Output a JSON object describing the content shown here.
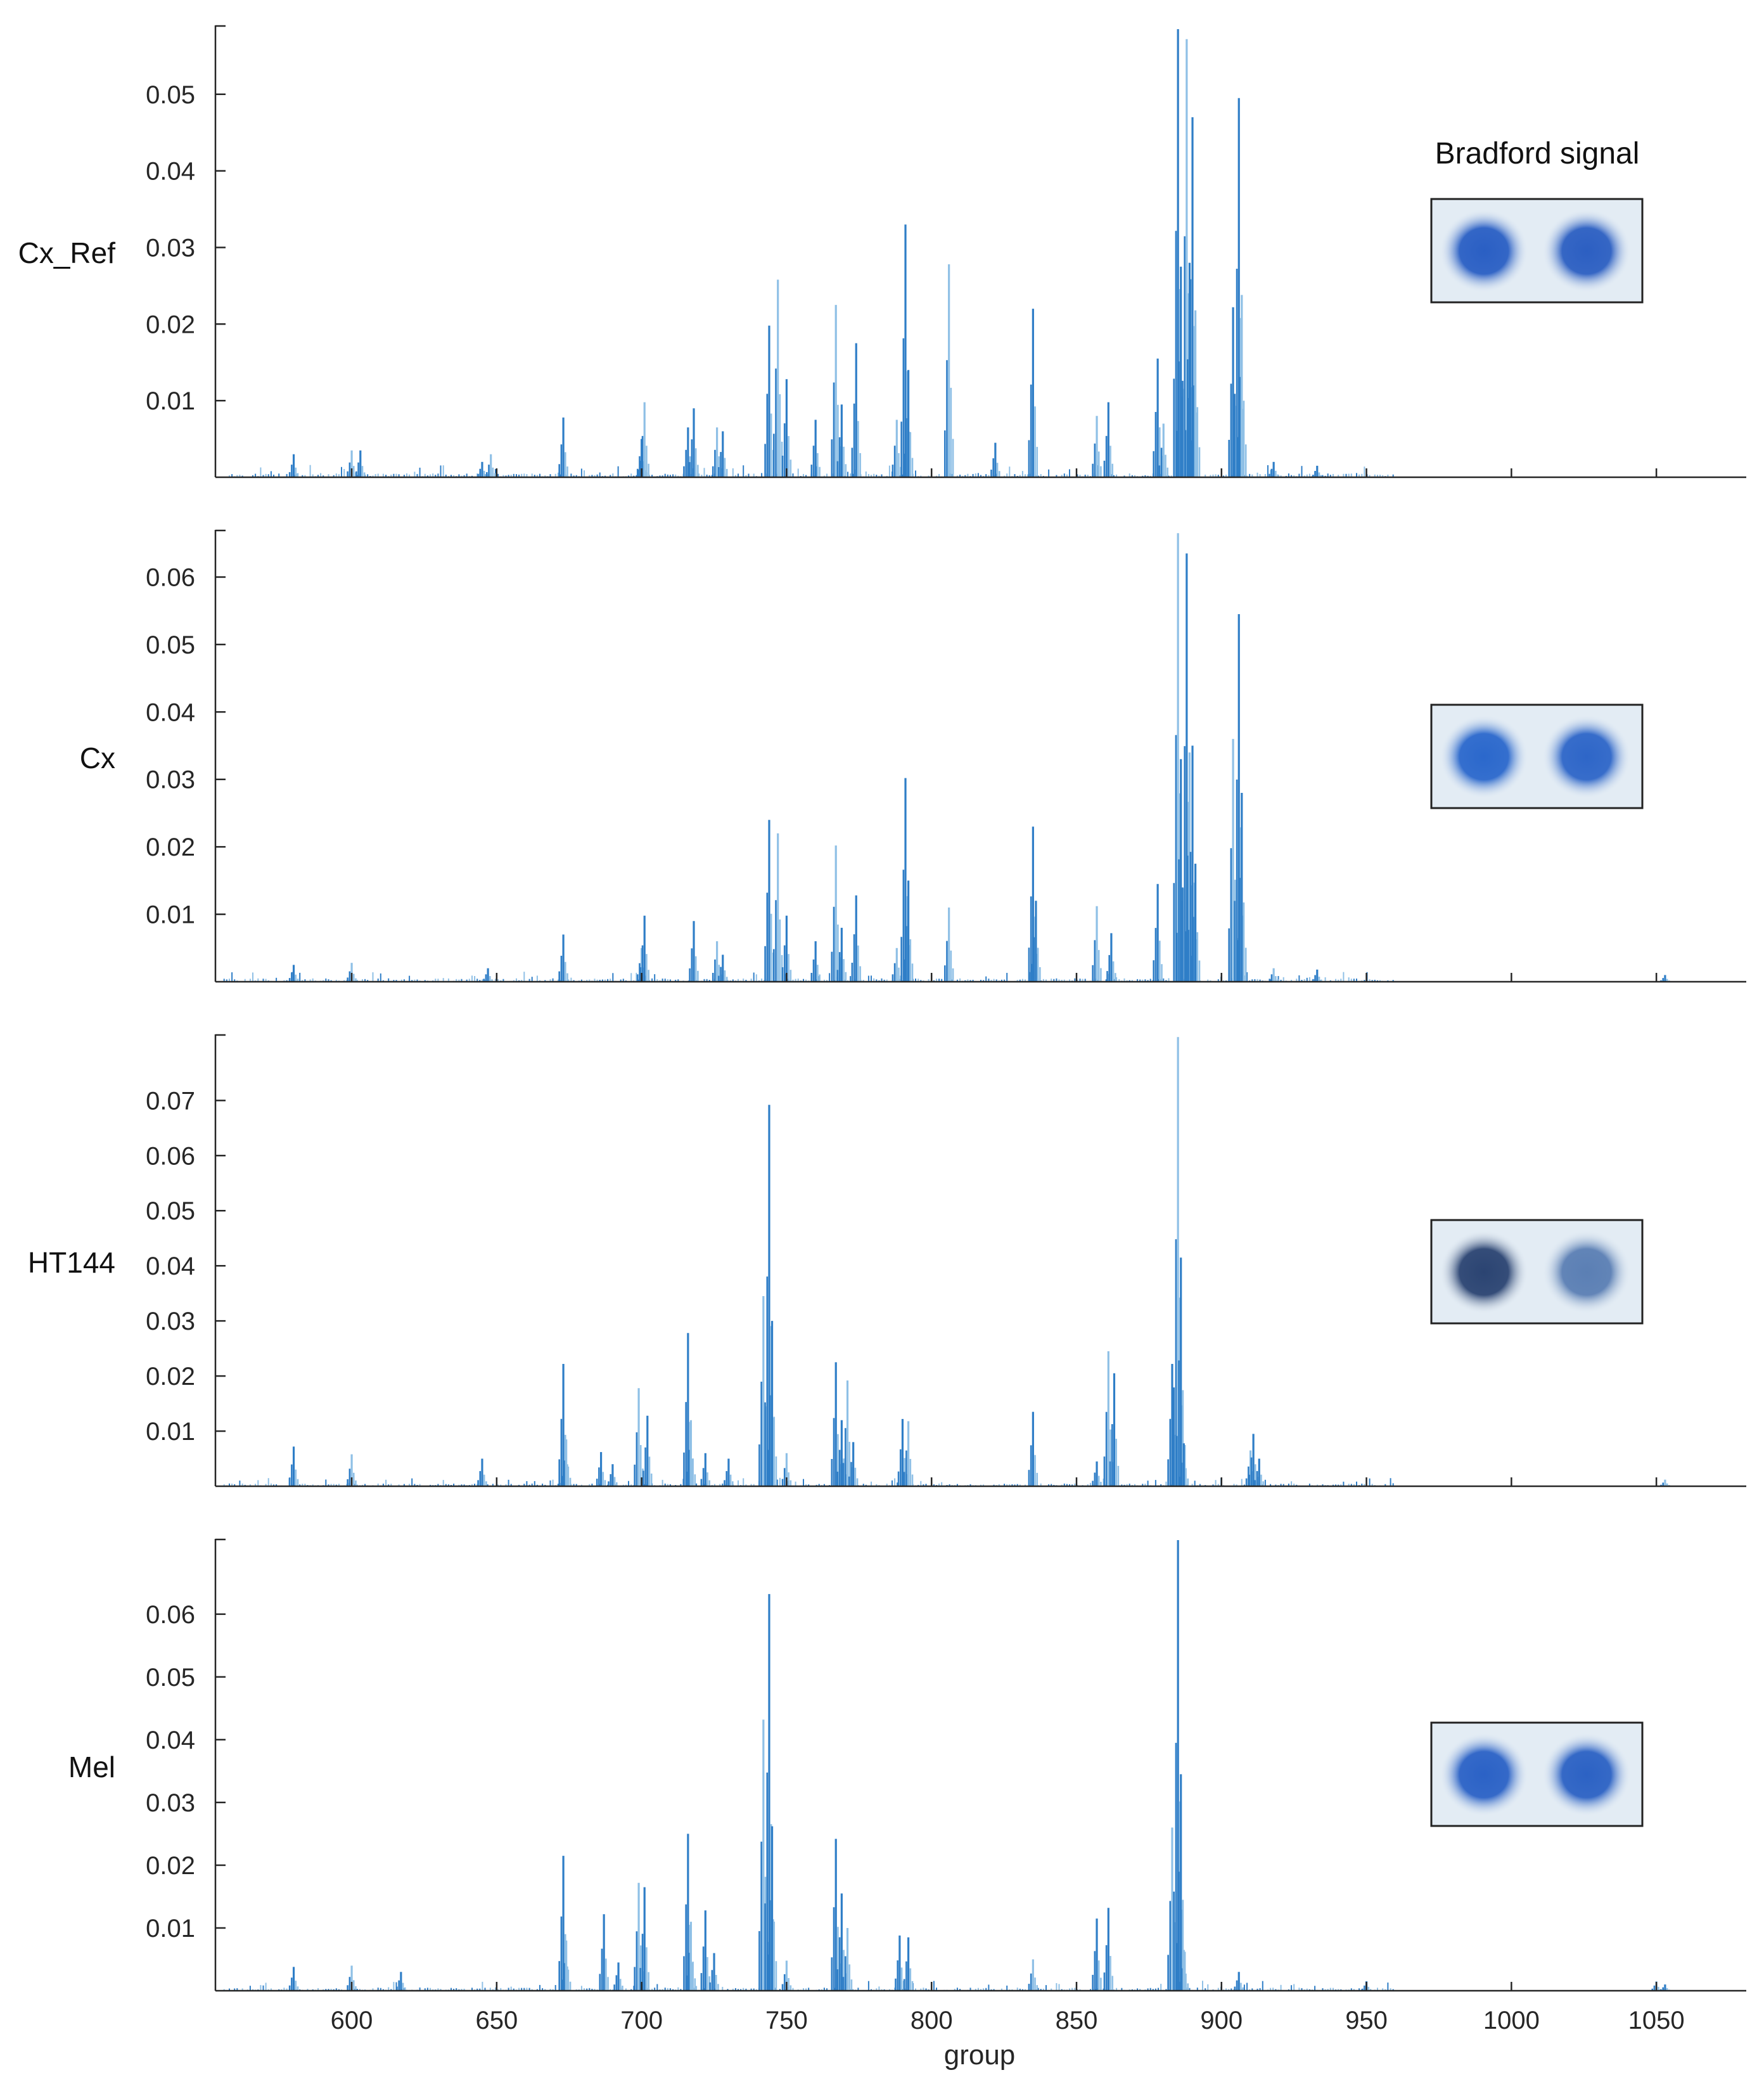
{
  "figure": {
    "inset_title": "Bradford signal",
    "xlabel": "group"
  },
  "chart_data": [
    {
      "type": "bar",
      "sample": "Cx_Ref",
      "title": "",
      "xlabel": "",
      "ylabel": "",
      "xlim": [
        553,
        1081
      ],
      "ylim": [
        0,
        0.059
      ],
      "yticks": [
        "0.01",
        "0.02",
        "0.03",
        "0.04",
        "0.05"
      ],
      "xticks": [
        600,
        650,
        700,
        750,
        800,
        850,
        900,
        950,
        1000,
        1050
      ],
      "show_xtick_labels": false,
      "inset": {
        "left_spot": "#2a5fc4",
        "right_spot": "#2c5fc2"
      },
      "peaks": [
        {
          "x": 580,
          "y": 0.003
        },
        {
          "x": 600,
          "y": 0.0035
        },
        {
          "x": 603,
          "y": 0.0035
        },
        {
          "x": 645,
          "y": 0.002
        },
        {
          "x": 648,
          "y": 0.003
        },
        {
          "x": 673,
          "y": 0.0078
        },
        {
          "x": 700,
          "y": 0.005
        },
        {
          "x": 701,
          "y": 0.0098
        },
        {
          "x": 716,
          "y": 0.0065
        },
        {
          "x": 718,
          "y": 0.009
        },
        {
          "x": 726,
          "y": 0.0065
        },
        {
          "x": 728,
          "y": 0.006
        },
        {
          "x": 744,
          "y": 0.0198
        },
        {
          "x": 747,
          "y": 0.0258
        },
        {
          "x": 750,
          "y": 0.0128
        },
        {
          "x": 760,
          "y": 0.0075
        },
        {
          "x": 767,
          "y": 0.0225
        },
        {
          "x": 769,
          "y": 0.0095
        },
        {
          "x": 774,
          "y": 0.0175
        },
        {
          "x": 788,
          "y": 0.0075
        },
        {
          "x": 791,
          "y": 0.033
        },
        {
          "x": 792,
          "y": 0.014
        },
        {
          "x": 806,
          "y": 0.0278
        },
        {
          "x": 822,
          "y": 0.0045
        },
        {
          "x": 835,
          "y": 0.022
        },
        {
          "x": 857,
          "y": 0.008
        },
        {
          "x": 861,
          "y": 0.0098
        },
        {
          "x": 878,
          "y": 0.0155
        },
        {
          "x": 880,
          "y": 0.007
        },
        {
          "x": 885,
          "y": 0.0585
        },
        {
          "x": 886,
          "y": 0.0275
        },
        {
          "x": 888,
          "y": 0.0572
        },
        {
          "x": 889,
          "y": 0.028
        },
        {
          "x": 890,
          "y": 0.047
        },
        {
          "x": 891,
          "y": 0.0218
        },
        {
          "x": 904,
          "y": 0.0222
        },
        {
          "x": 906,
          "y": 0.0495
        },
        {
          "x": 907,
          "y": 0.0238
        },
        {
          "x": 918,
          "y": 0.002
        },
        {
          "x": 933,
          "y": 0.0015
        }
      ]
    },
    {
      "type": "bar",
      "sample": "Cx",
      "title": "",
      "xlabel": "",
      "ylabel": "",
      "xlim": [
        553,
        1081
      ],
      "ylim": [
        0,
        0.067
      ],
      "yticks": [
        "0.01",
        "0.02",
        "0.03",
        "0.04",
        "0.05",
        "0.06"
      ],
      "xticks": [
        600,
        650,
        700,
        750,
        800,
        850,
        900,
        950,
        1000,
        1050
      ],
      "show_xtick_labels": false,
      "inset": {
        "left_spot": "#2b68cc",
        "right_spot": "#2e66c8"
      },
      "peaks": [
        {
          "x": 580,
          "y": 0.0025
        },
        {
          "x": 600,
          "y": 0.0028
        },
        {
          "x": 647,
          "y": 0.002
        },
        {
          "x": 673,
          "y": 0.007
        },
        {
          "x": 700,
          "y": 0.005
        },
        {
          "x": 701,
          "y": 0.0098
        },
        {
          "x": 718,
          "y": 0.009
        },
        {
          "x": 726,
          "y": 0.006
        },
        {
          "x": 728,
          "y": 0.004
        },
        {
          "x": 744,
          "y": 0.024
        },
        {
          "x": 747,
          "y": 0.022
        },
        {
          "x": 750,
          "y": 0.0098
        },
        {
          "x": 760,
          "y": 0.006
        },
        {
          "x": 767,
          "y": 0.0202
        },
        {
          "x": 769,
          "y": 0.008
        },
        {
          "x": 774,
          "y": 0.0128
        },
        {
          "x": 788,
          "y": 0.005
        },
        {
          "x": 791,
          "y": 0.0302
        },
        {
          "x": 792,
          "y": 0.015
        },
        {
          "x": 806,
          "y": 0.011
        },
        {
          "x": 835,
          "y": 0.023
        },
        {
          "x": 836,
          "y": 0.012
        },
        {
          "x": 857,
          "y": 0.0112
        },
        {
          "x": 862,
          "y": 0.0072
        },
        {
          "x": 878,
          "y": 0.0145
        },
        {
          "x": 885,
          "y": 0.0665
        },
        {
          "x": 886,
          "y": 0.033
        },
        {
          "x": 888,
          "y": 0.0635
        },
        {
          "x": 889,
          "y": 0.034
        },
        {
          "x": 890,
          "y": 0.035
        },
        {
          "x": 891,
          "y": 0.0175
        },
        {
          "x": 904,
          "y": 0.036
        },
        {
          "x": 906,
          "y": 0.0545
        },
        {
          "x": 907,
          "y": 0.028
        },
        {
          "x": 918,
          "y": 0.002
        },
        {
          "x": 933,
          "y": 0.0018
        },
        {
          "x": 1053,
          "y": 0.001
        }
      ]
    },
    {
      "type": "bar",
      "sample": "HT144",
      "title": "",
      "xlabel": "",
      "ylabel": "",
      "xlim": [
        553,
        1081
      ],
      "ylim": [
        0,
        0.082
      ],
      "yticks": [
        "0.01",
        "0.02",
        "0.03",
        "0.04",
        "0.05",
        "0.06",
        "0.07"
      ],
      "xticks": [
        600,
        650,
        700,
        750,
        800,
        850,
        900,
        950,
        1000,
        1050
      ],
      "show_xtick_labels": false,
      "inset": {
        "left_spot": "#2b4472",
        "right_spot": "#5b7fb4"
      },
      "peaks": [
        {
          "x": 580,
          "y": 0.0072
        },
        {
          "x": 600,
          "y": 0.0058
        },
        {
          "x": 645,
          "y": 0.005
        },
        {
          "x": 673,
          "y": 0.0222
        },
        {
          "x": 674,
          "y": 0.0085
        },
        {
          "x": 686,
          "y": 0.0062
        },
        {
          "x": 690,
          "y": 0.004
        },
        {
          "x": 699,
          "y": 0.0178
        },
        {
          "x": 702,
          "y": 0.0128
        },
        {
          "x": 716,
          "y": 0.0278
        },
        {
          "x": 717,
          "y": 0.012
        },
        {
          "x": 722,
          "y": 0.006
        },
        {
          "x": 730,
          "y": 0.005
        },
        {
          "x": 742,
          "y": 0.0345
        },
        {
          "x": 744,
          "y": 0.0692
        },
        {
          "x": 745,
          "y": 0.03
        },
        {
          "x": 750,
          "y": 0.006
        },
        {
          "x": 767,
          "y": 0.0225
        },
        {
          "x": 769,
          "y": 0.012
        },
        {
          "x": 771,
          "y": 0.0192
        },
        {
          "x": 773,
          "y": 0.008
        },
        {
          "x": 790,
          "y": 0.0122
        },
        {
          "x": 792,
          "y": 0.0118
        },
        {
          "x": 835,
          "y": 0.0135
        },
        {
          "x": 857,
          "y": 0.0045
        },
        {
          "x": 861,
          "y": 0.0245
        },
        {
          "x": 863,
          "y": 0.0205
        },
        {
          "x": 883,
          "y": 0.0222
        },
        {
          "x": 885,
          "y": 0.0815
        },
        {
          "x": 886,
          "y": 0.0415
        },
        {
          "x": 887,
          "y": 0.0078
        },
        {
          "x": 910,
          "y": 0.0065
        },
        {
          "x": 911,
          "y": 0.0095
        },
        {
          "x": 913,
          "y": 0.005
        },
        {
          "x": 1053,
          "y": 0.0012
        }
      ]
    },
    {
      "type": "bar",
      "sample": "Mel",
      "title": "",
      "xlabel": "group",
      "ylabel": "",
      "xlim": [
        553,
        1081
      ],
      "ylim": [
        0,
        0.072
      ],
      "yticks": [
        "0.01",
        "0.02",
        "0.03",
        "0.04",
        "0.05",
        "0.06"
      ],
      "xticks": [
        600,
        650,
        700,
        750,
        800,
        850,
        900,
        950,
        1000,
        1050
      ],
      "show_xtick_labels": true,
      "inset": {
        "left_spot": "#2b62c6",
        "right_spot": "#2c62c4"
      },
      "peaks": [
        {
          "x": 580,
          "y": 0.0038
        },
        {
          "x": 600,
          "y": 0.004
        },
        {
          "x": 617,
          "y": 0.003
        },
        {
          "x": 673,
          "y": 0.0215
        },
        {
          "x": 674,
          "y": 0.008
        },
        {
          "x": 687,
          "y": 0.0122
        },
        {
          "x": 692,
          "y": 0.0045
        },
        {
          "x": 699,
          "y": 0.0172
        },
        {
          "x": 701,
          "y": 0.0165
        },
        {
          "x": 716,
          "y": 0.025
        },
        {
          "x": 717,
          "y": 0.011
        },
        {
          "x": 722,
          "y": 0.0128
        },
        {
          "x": 725,
          "y": 0.006
        },
        {
          "x": 742,
          "y": 0.0432
        },
        {
          "x": 744,
          "y": 0.0632
        },
        {
          "x": 745,
          "y": 0.0262
        },
        {
          "x": 750,
          "y": 0.0048
        },
        {
          "x": 767,
          "y": 0.0242
        },
        {
          "x": 769,
          "y": 0.0155
        },
        {
          "x": 771,
          "y": 0.01
        },
        {
          "x": 789,
          "y": 0.0088
        },
        {
          "x": 792,
          "y": 0.0085
        },
        {
          "x": 835,
          "y": 0.005
        },
        {
          "x": 857,
          "y": 0.0115
        },
        {
          "x": 861,
          "y": 0.0132
        },
        {
          "x": 883,
          "y": 0.026
        },
        {
          "x": 885,
          "y": 0.0718
        },
        {
          "x": 886,
          "y": 0.0345
        },
        {
          "x": 887,
          "y": 0.0065
        },
        {
          "x": 906,
          "y": 0.003
        },
        {
          "x": 950,
          "y": 0.0015
        },
        {
          "x": 1050,
          "y": 0.0015
        },
        {
          "x": 1053,
          "y": 0.001
        }
      ]
    }
  ]
}
